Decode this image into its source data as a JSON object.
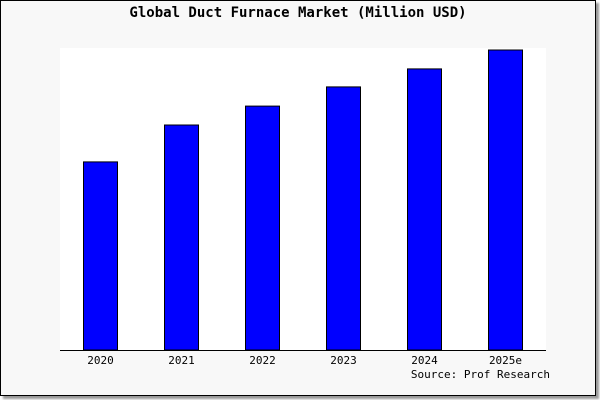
{
  "chart_data": {
    "type": "bar",
    "title": "Global Duct Furnace Market (Million USD)",
    "categories": [
      "2020",
      "2021",
      "2022",
      "2023",
      "2024",
      "2025e"
    ],
    "values": [
      62.7,
      75.0,
      81.3,
      87.7,
      93.7,
      100
    ],
    "ylim": [
      0,
      100
    ],
    "xlabel": "",
    "ylabel": "",
    "grid": false,
    "bar_color": "#0000ff",
    "source": "Source: Prof Research"
  }
}
